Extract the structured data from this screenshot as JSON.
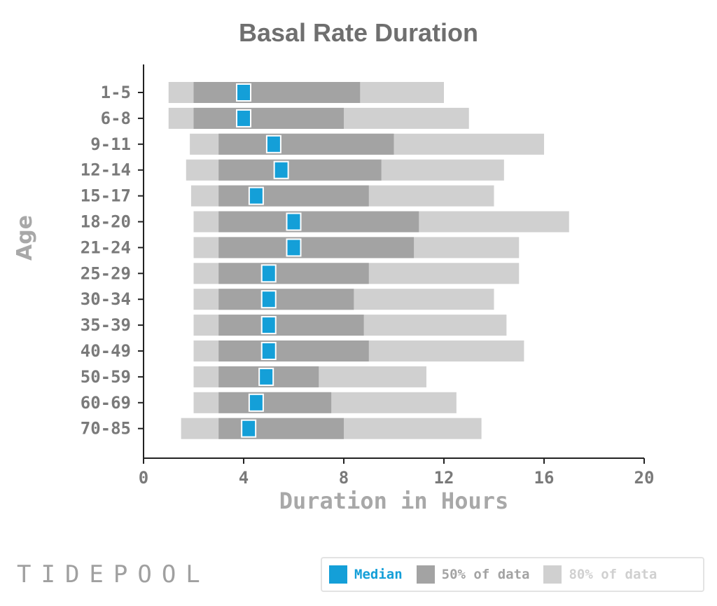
{
  "title": "Basal Rate Duration",
  "colors": {
    "median": "#149fd8",
    "p50": "#a3a3a3",
    "p80": "#d0d0d0",
    "axis": "#222222",
    "text": "#7a7a7a"
  },
  "legend": {
    "median_label": "Median",
    "p50_label": "50% of data",
    "p80_label": "80% of data"
  },
  "logo": "TIDEPOOL",
  "chart_data": {
    "type": "bar",
    "title": "Basal Rate Duration",
    "xlabel": "Duration in Hours",
    "ylabel": "Age",
    "xlim": [
      0,
      20
    ],
    "xticks": [
      0,
      4,
      8,
      12,
      16,
      20
    ],
    "categories": [
      "1-5",
      "6-8",
      "9-11",
      "12-14",
      "15-17",
      "18-20",
      "21-24",
      "25-29",
      "30-34",
      "35-39",
      "40-49",
      "50-59",
      "60-69",
      "70-85"
    ],
    "series": [
      {
        "name": "80% of data (low)",
        "values": [
          1.0,
          1.0,
          1.85,
          1.7,
          1.9,
          2.0,
          2.0,
          2.0,
          2.0,
          2.0,
          2.0,
          2.0,
          2.0,
          1.5
        ]
      },
      {
        "name": "50% of data (low)",
        "values": [
          2.0,
          2.0,
          3.0,
          3.0,
          3.0,
          3.0,
          3.0,
          3.0,
          3.0,
          3.0,
          3.0,
          3.0,
          3.0,
          3.0
        ]
      },
      {
        "name": "Median",
        "values": [
          4.0,
          4.0,
          5.2,
          5.5,
          4.5,
          6.0,
          6.0,
          5.0,
          5.0,
          5.0,
          5.0,
          4.9,
          4.5,
          4.2
        ]
      },
      {
        "name": "50% of data (high)",
        "values": [
          8.65,
          8.0,
          10.0,
          9.5,
          9.0,
          11.0,
          10.8,
          9.0,
          8.4,
          8.8,
          9.0,
          7.0,
          7.5,
          8.0
        ]
      },
      {
        "name": "80% of data (high)",
        "values": [
          12.0,
          13.0,
          16.0,
          14.4,
          14.0,
          17.0,
          15.0,
          15.0,
          14.0,
          14.5,
          15.2,
          11.3,
          12.5,
          13.5
        ]
      }
    ],
    "legend": [
      "Median",
      "50% of data",
      "80% of data"
    ],
    "grid": false,
    "legend_position": "bottom-right"
  }
}
